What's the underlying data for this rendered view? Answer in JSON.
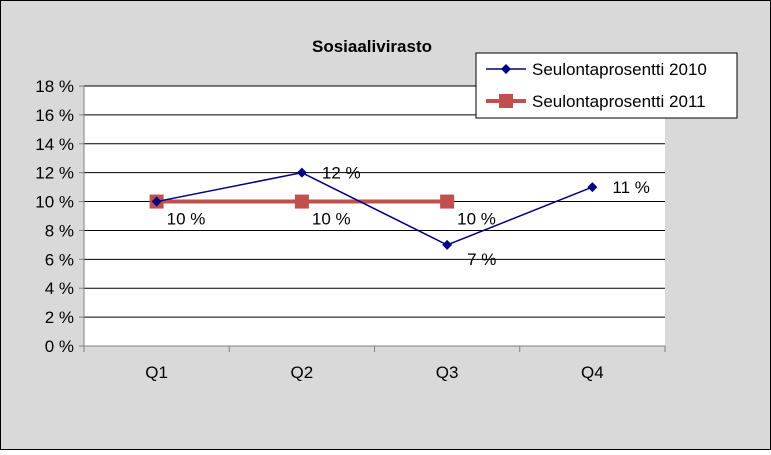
{
  "chart_data": {
    "type": "line",
    "title": "Sosiaalivirasto",
    "categories": [
      "Q1",
      "Q2",
      "Q3",
      "Q4"
    ],
    "ylim": [
      0,
      18
    ],
    "ytick_values": [
      0,
      2,
      4,
      6,
      8,
      10,
      12,
      14,
      16,
      18
    ],
    "ytick_labels": [
      "0 %",
      "2 %",
      "4 %",
      "6 %",
      "8 %",
      "10 %",
      "12 %",
      "14 %",
      "16 %",
      "18 %"
    ],
    "grid": true,
    "legend_position": "top-right",
    "series": [
      {
        "name": "Seulontaprosentti 2010",
        "values": [
          10,
          12,
          7,
          11
        ],
        "labels": [
          "",
          "12 %",
          "7 %",
          "11 %"
        ],
        "color": "#000080",
        "marker": "diamond"
      },
      {
        "name": "Seulontaprosentti 2011",
        "values": [
          10,
          10,
          10,
          null
        ],
        "labels": [
          "10 %",
          "10 %",
          "10 %",
          ""
        ],
        "color": "#c0504d",
        "marker": "square"
      }
    ]
  },
  "colors": {
    "chart_background": "#d9d9d9",
    "plot_background": "#ffffff",
    "gridline": "#000000",
    "axis": "#808080"
  }
}
